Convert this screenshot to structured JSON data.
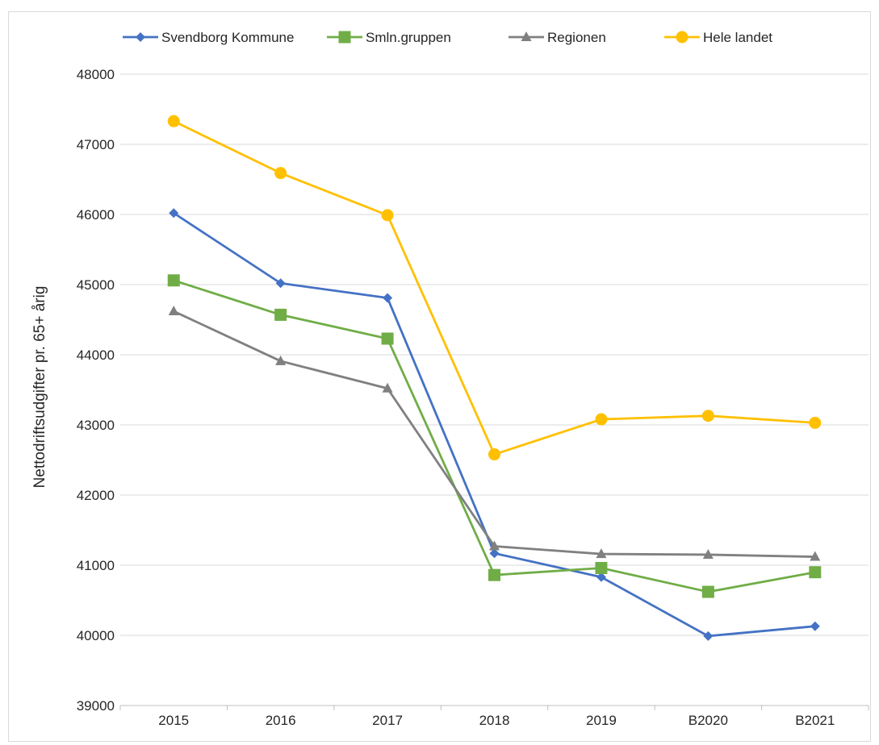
{
  "chart_data": {
    "type": "line",
    "title": "",
    "xlabel": "",
    "ylabel": "Nettodriftsudgifter pr. 65+ årig",
    "categories": [
      "2015",
      "2016",
      "2017",
      "2018",
      "2019",
      "B2020",
      "B2021"
    ],
    "ylim": [
      39000,
      48000
    ],
    "yticks": [
      39000,
      40000,
      41000,
      42000,
      43000,
      44000,
      45000,
      46000,
      47000,
      48000
    ],
    "grid": true,
    "legend_position": "top",
    "series": [
      {
        "name": "Svendborg Kommune",
        "color": "#4472C4",
        "marker": "diamond",
        "values": [
          46020,
          45020,
          44810,
          41170,
          40830,
          39990,
          40130
        ]
      },
      {
        "name": "Smln.gruppen",
        "color": "#70AD47",
        "marker": "square",
        "values": [
          45060,
          44570,
          44230,
          40860,
          40960,
          40620,
          40900
        ]
      },
      {
        "name": "Regionen",
        "color": "#808080",
        "marker": "triangle",
        "values": [
          44620,
          43910,
          43520,
          41270,
          41160,
          41150,
          41120
        ]
      },
      {
        "name": "Hele landet",
        "color": "#FFC000",
        "marker": "circle",
        "values": [
          47330,
          46590,
          45990,
          42580,
          43080,
          43130,
          43030
        ]
      }
    ]
  }
}
